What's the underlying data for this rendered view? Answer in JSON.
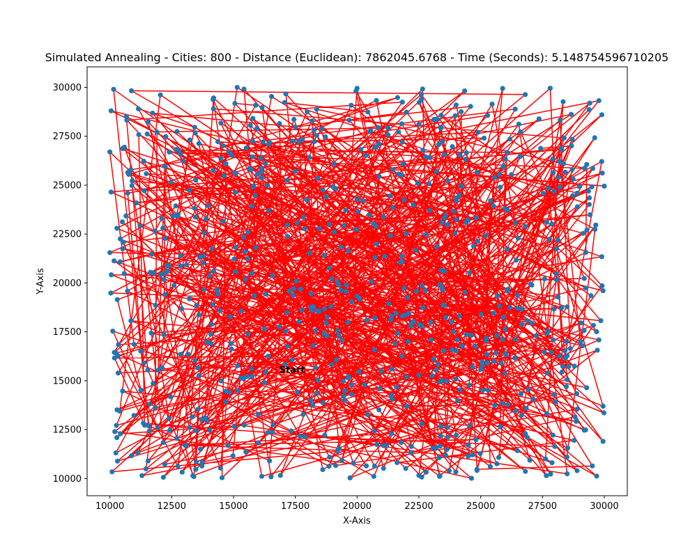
{
  "chart_data": {
    "type": "scatter",
    "title": "Simulated Annealing - Cities: 800 - Distance (Euclidean): 7862045.6768 - Time (Seconds): 5.148754596710205",
    "xlabel": "X-Axis",
    "ylabel": "Y-Axis",
    "xlim": [
      9080,
      30930
    ],
    "ylim": [
      9120,
      31050
    ],
    "x_ticks": [
      10000,
      12500,
      15000,
      17500,
      20000,
      22500,
      25000,
      27500,
      30000
    ],
    "x_tick_labels": [
      "10000",
      "12500",
      "15000",
      "17500",
      "20000",
      "22500",
      "25000",
      "27500",
      "30000"
    ],
    "y_ticks": [
      10000,
      12500,
      15000,
      17500,
      20000,
      22500,
      25000,
      27500,
      30000
    ],
    "y_tick_labels": [
      "10000",
      "12500",
      "15000",
      "17500",
      "20000",
      "22500",
      "25000",
      "27500",
      "30000"
    ],
    "grid": false,
    "series": [
      {
        "kind": "points",
        "color": "#1f77b4",
        "count": 800,
        "x_range": [
          10000,
          30000
        ],
        "y_range": [
          10000,
          30000
        ],
        "sample": [
          {
            "x": 10150,
            "y": 29900
          },
          {
            "x": 10050,
            "y": 28800
          },
          {
            "x": 10000,
            "y": 26700
          },
          {
            "x": 10050,
            "y": 24650
          },
          {
            "x": 10000,
            "y": 21550
          },
          {
            "x": 10300,
            "y": 19150
          },
          {
            "x": 10350,
            "y": 16850
          },
          {
            "x": 10400,
            "y": 13450
          },
          {
            "x": 10200,
            "y": 12400
          },
          {
            "x": 11300,
            "y": 10150
          },
          {
            "x": 13400,
            "y": 10100
          },
          {
            "x": 15150,
            "y": 30000
          },
          {
            "x": 20000,
            "y": 29950
          },
          {
            "x": 23350,
            "y": 10150
          },
          {
            "x": 28900,
            "y": 10400
          },
          {
            "x": 29900,
            "y": 28600
          },
          {
            "x": 30000,
            "y": 24950
          },
          {
            "x": 29950,
            "y": 19600
          },
          {
            "x": 29950,
            "y": 13700
          },
          {
            "x": 29950,
            "y": 11900
          }
        ]
      },
      {
        "kind": "tour-path",
        "color": "#ff0000"
      }
    ],
    "annotations": [
      {
        "text": "Start",
        "x": 16850,
        "y": 15400
      }
    ]
  }
}
